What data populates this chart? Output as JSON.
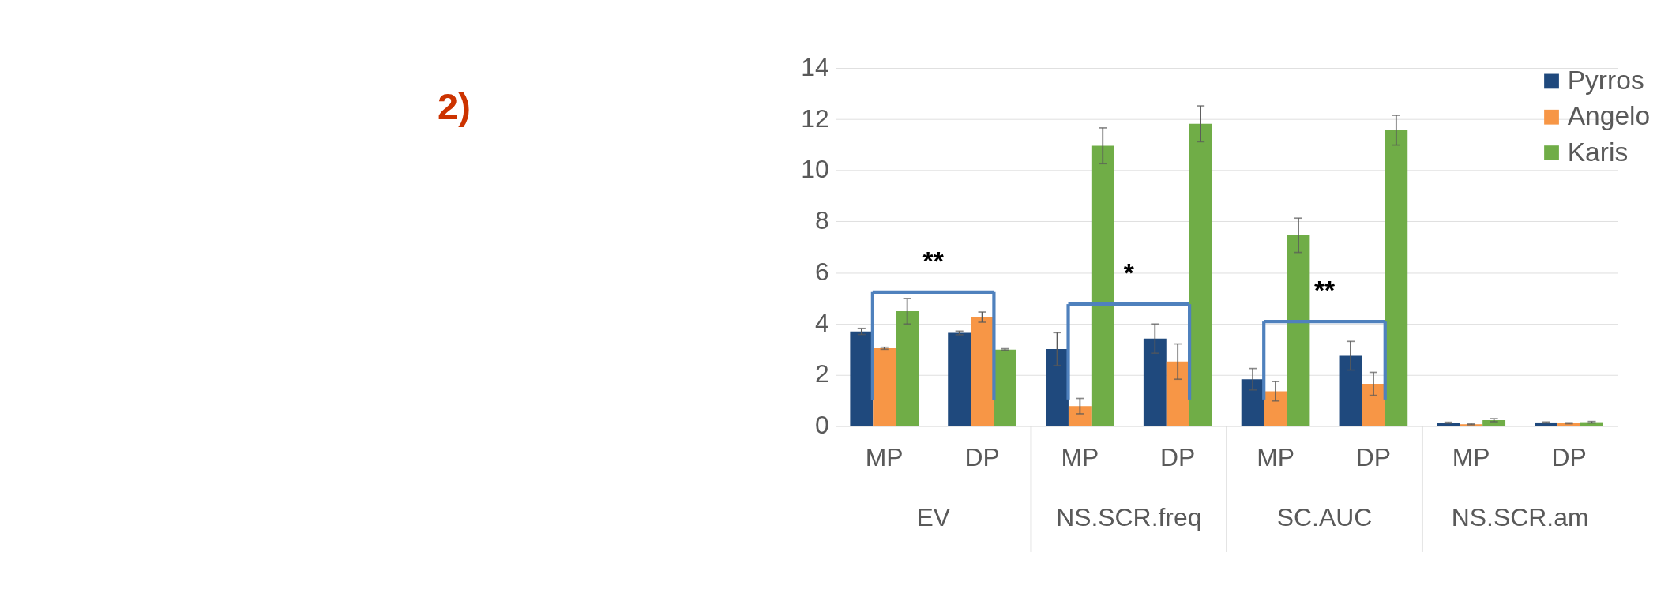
{
  "chart_data": {
    "type": "bar",
    "title": "2)",
    "categories": [
      "MP",
      "DP",
      "MP",
      "DP",
      "MP",
      "DP",
      "MP",
      "DP"
    ],
    "series": [
      {
        "name": "Pyrros",
        "color": "#1f497d",
        "values": [
          3.7,
          3.64,
          3.01,
          3.42,
          1.83,
          2.75,
          0.13,
          0.14
        ],
        "errors": [
          0.12,
          0.07,
          0.64,
          0.57,
          0.42,
          0.56,
          0.02,
          0.02
        ]
      },
      {
        "name": "Angelo",
        "color": "#f79646",
        "values": [
          3.04,
          4.26,
          0.78,
          2.52,
          1.36,
          1.65,
          0.07,
          0.11
        ],
        "errors": [
          0.04,
          0.2,
          0.3,
          0.69,
          0.38,
          0.45,
          0.02,
          0.02
        ]
      },
      {
        "name": "Karis",
        "color": "#70ad47",
        "values": [
          4.49,
          2.99,
          10.96,
          11.82,
          7.46,
          11.57,
          0.23,
          0.15
        ],
        "errors": [
          0.5,
          0.03,
          0.7,
          0.7,
          0.67,
          0.58,
          0.06,
          0.03
        ]
      }
    ],
    "annotations": [
      "EV",
      "NS.SCR.freq",
      "SC.AUC",
      "NS.SCR.am",
      "**",
      "*",
      "**"
    ],
    "ylim": [
      0,
      14
    ],
    "yticks": [
      0,
      2,
      4,
      6,
      8,
      10,
      12,
      14
    ],
    "grid": "y",
    "legend": "right"
  }
}
